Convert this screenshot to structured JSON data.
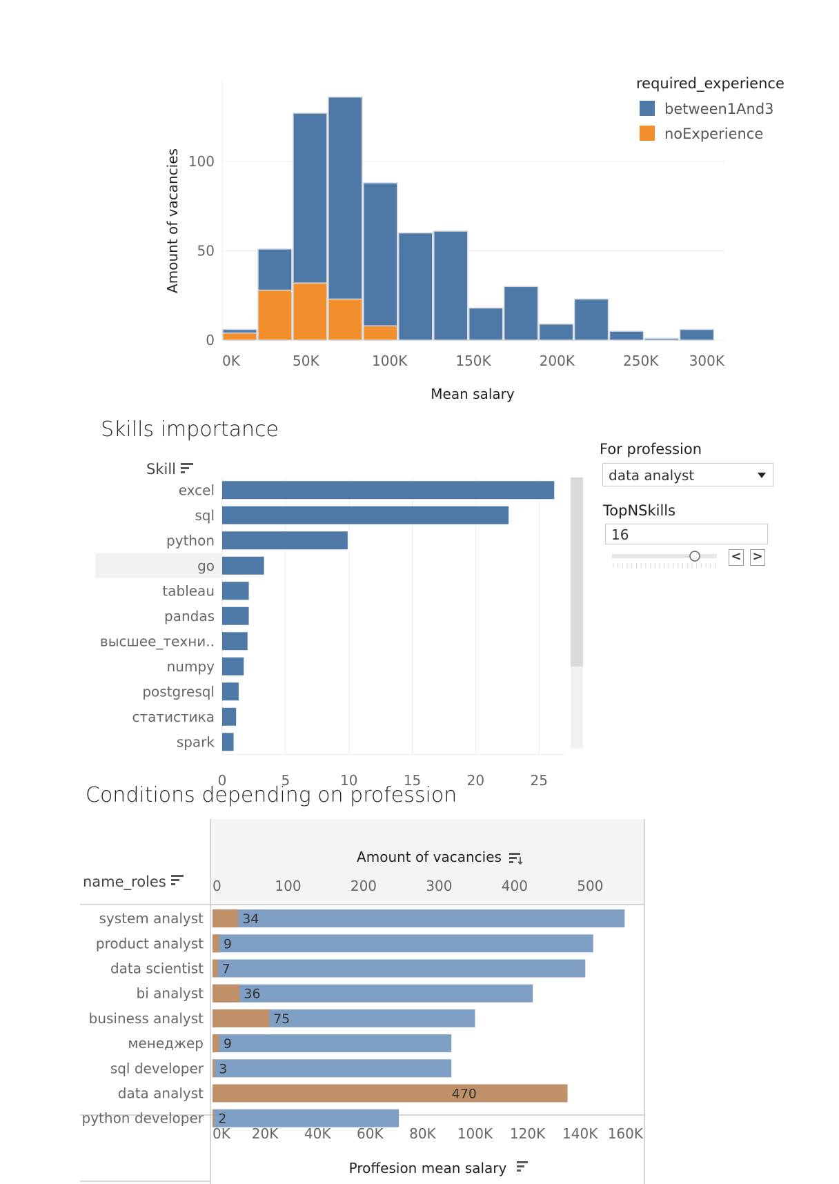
{
  "colors": {
    "blue": "#4e79a7",
    "orange": "#f28e2b",
    "blue_light": "#7f9fc4",
    "orange_muted": "#c09068",
    "orange_light": "#f7bd85",
    "grid": "#ececec"
  },
  "chart_data": [
    {
      "type": "bar",
      "subtype": "stacked-histogram",
      "title": "",
      "xlabel": "Mean salary",
      "ylabel": "Amount of vacancies",
      "xlim": [
        0,
        300000
      ],
      "ylim": [
        0,
        140
      ],
      "x_ticks": [
        "0K",
        "50K",
        "100K",
        "150K",
        "200K",
        "250K",
        "300K"
      ],
      "y_ticks": [
        "0",
        "50",
        "100"
      ],
      "legend_title": "required_experience",
      "legend": [
        "between1And3",
        "noExperience"
      ],
      "bin_width": 21000,
      "bin_starts": [
        0,
        21000,
        42000,
        63000,
        84000,
        105000,
        126000,
        147000,
        168000,
        189000,
        210000,
        231000,
        252000,
        273000
      ],
      "series": [
        {
          "name": "between1And3",
          "values": [
            2,
            23,
            95,
            113,
            80,
            60,
            61,
            18,
            30,
            9,
            23,
            5,
            1,
            6
          ]
        },
        {
          "name": "noExperience",
          "values": [
            4,
            28,
            32,
            23,
            8,
            0,
            0,
            0,
            0,
            0,
            0,
            0,
            0,
            0
          ]
        }
      ]
    },
    {
      "type": "bar",
      "orientation": "horizontal",
      "title": "Skills importance",
      "row_header": "Skill",
      "categories": [
        "excel",
        "sql",
        "python",
        "go",
        "tableau",
        "pandas",
        "высшее_техни..",
        "numpy",
        "postgresql",
        "статистика",
        "spark"
      ],
      "values": [
        26.2,
        22.6,
        9.9,
        3.3,
        2.1,
        2.1,
        2.0,
        1.7,
        1.3,
        1.1,
        0.9
      ],
      "highlighted": "go",
      "xlim": [
        0,
        27
      ],
      "x_ticks": [
        "0",
        "5",
        "10",
        "15",
        "20",
        "25"
      ]
    },
    {
      "type": "bar",
      "orientation": "horizontal",
      "subtype": "dual-axis",
      "title": "Conditions depending on profession",
      "row_header": "name_roles",
      "categories": [
        "system analyst",
        "product analyst",
        "data scientist",
        "bi analyst",
        "business analyst",
        "менеджер",
        "sql developer",
        "data analyst",
        "python developer"
      ],
      "top_axis_title": "Amount of vacancies",
      "top_ticks": [
        "0",
        "100",
        "200",
        "300",
        "400",
        "500"
      ],
      "bottom_axis_title": "Proffesion mean salary",
      "bottom_ticks": [
        "0K",
        "20K",
        "40K",
        "60K",
        "80K",
        "100K",
        "120K",
        "140K",
        "160K"
      ],
      "series": [
        {
          "name": "Amount of vacancies",
          "values": [
            34,
            9,
            7,
            36,
            75,
            9,
            3,
            470,
            2
          ],
          "labels": [
            "34",
            "9",
            "7",
            "36",
            "75",
            "9",
            "3",
            "470",
            "2"
          ]
        },
        {
          "name": "Proffesion mean salary",
          "values": [
            157000,
            145000,
            142000,
            122000,
            100000,
            91000,
            91000,
            89000,
            71000
          ]
        }
      ],
      "highlighted": "data analyst"
    }
  ],
  "controls": {
    "profession_title": "For profession",
    "profession_value": "data analyst",
    "topn_title": "TopNSkills",
    "topn_value": "16",
    "prev_label": "<",
    "next_label": ">"
  }
}
